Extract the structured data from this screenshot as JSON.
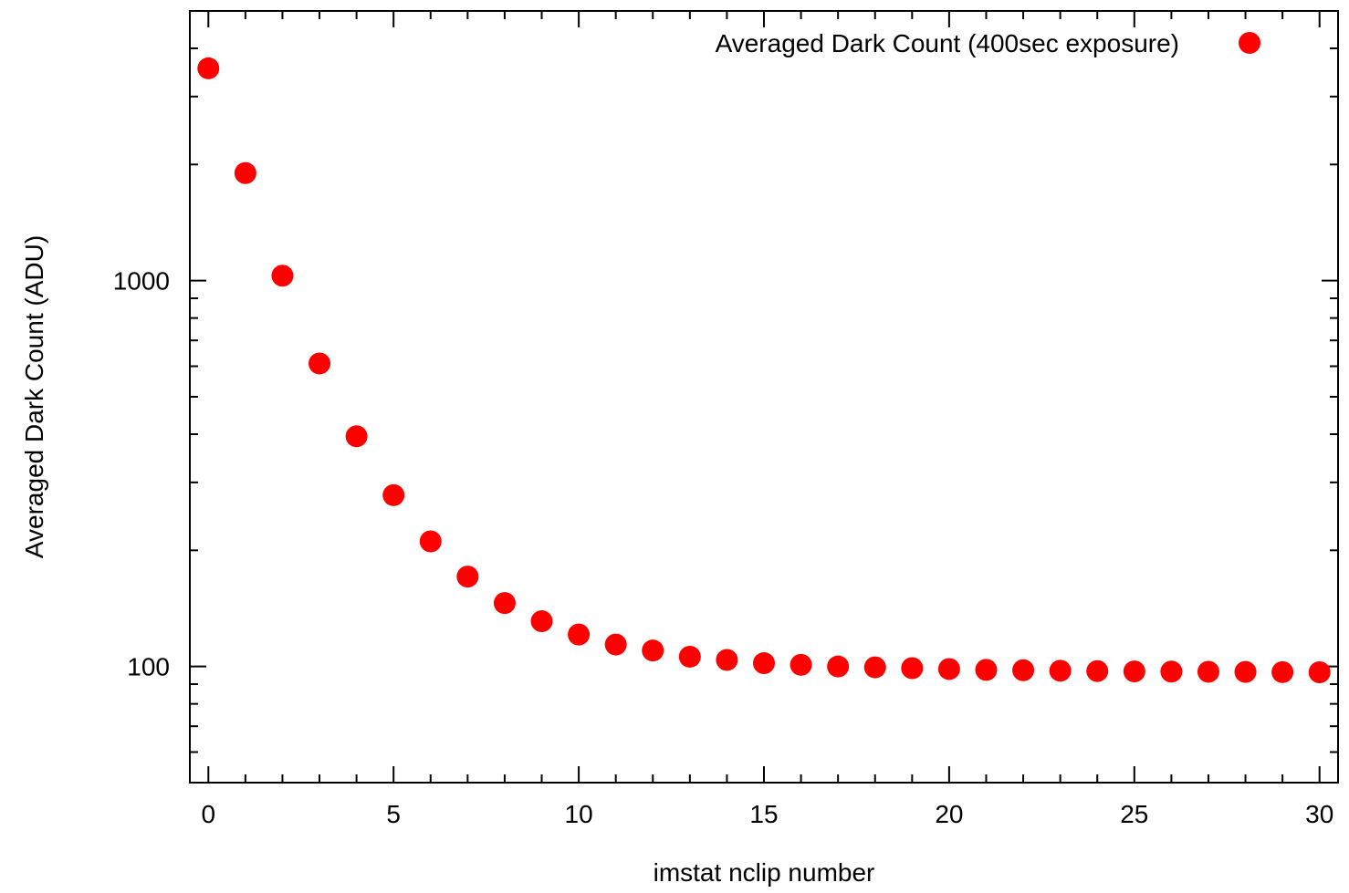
{
  "chart_data": {
    "type": "scatter",
    "title": "",
    "xlabel": "imstat nclip number",
    "ylabel": "Averaged Dark Count (ADU)",
    "xlim": [
      -0.5,
      30.5
    ],
    "ylim": [
      50,
      5000
    ],
    "yscale": "log",
    "x_ticks": [
      0,
      5,
      10,
      15,
      20,
      25,
      30
    ],
    "y_ticks": [
      100,
      1000
    ],
    "grid": false,
    "legend": "top-right",
    "series": [
      {
        "name": "Averaged Dark Count (400sec exposure)",
        "color": "#ff0000",
        "marker": "circle",
        "x": [
          0,
          1,
          2,
          3,
          4,
          5,
          6,
          7,
          8,
          9,
          10,
          11,
          12,
          13,
          14,
          15,
          16,
          17,
          18,
          19,
          20,
          21,
          22,
          23,
          24,
          25,
          26,
          27,
          28,
          29,
          30
        ],
        "y": [
          3550,
          1900,
          1030,
          610,
          395,
          278,
          211,
          171,
          146,
          131,
          121,
          114,
          110,
          106,
          104,
          102,
          101,
          100,
          99.5,
          99,
          98.5,
          98,
          97.8,
          97.5,
          97.3,
          97.1,
          97,
          96.9,
          96.8,
          96.7,
          96.6
        ]
      }
    ]
  }
}
